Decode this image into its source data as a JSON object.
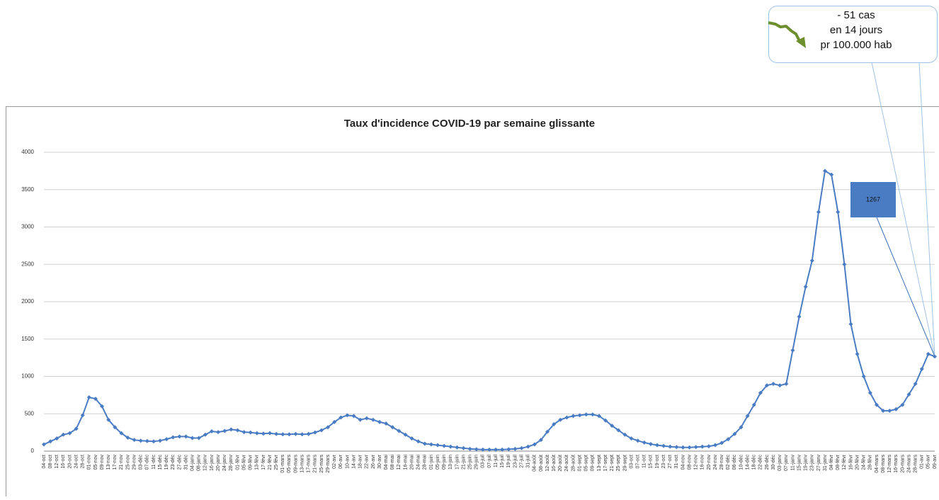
{
  "chart_data": {
    "type": "line",
    "title": "Taux d'incidence COVID-19 par semaine glissante",
    "categories": [
      "04-oct",
      "08-oct",
      "12-oct",
      "16-oct",
      "20-oct",
      "24-oct",
      "28-oct",
      "01-nov",
      "05-nov",
      "09-nov",
      "13-nov",
      "17-nov",
      "21-nov",
      "25-nov",
      "29-nov",
      "03-déc",
      "07-déc",
      "11-déc",
      "15-déc",
      "19-déc",
      "23-déc",
      "27-déc",
      "31-déc",
      "04-janv",
      "08-janv",
      "12-janv",
      "16-janv",
      "20-janv",
      "24-janv",
      "28-janv",
      "01-févr",
      "05-févr",
      "09-févr",
      "13-févr",
      "17-févr",
      "21-févr",
      "25-févr",
      "01-mars",
      "05-mars",
      "09-mars",
      "13-mars",
      "17-mars",
      "21-mars",
      "25-mars",
      "29-mars",
      "02-avr",
      "06-avr",
      "10-avr",
      "14-avr",
      "18-avr",
      "22-avr",
      "26-avr",
      "30-avr",
      "04-mai",
      "08-mai",
      "12-mai",
      "16-mai",
      "20-mai",
      "24-mai",
      "28-mai",
      "01-juin",
      "05-juin",
      "09-juin",
      "13-juin",
      "17-juin",
      "21-juin",
      "25-juin",
      "29-juin",
      "03-juil",
      "07-juil",
      "11-juil",
      "15-juil",
      "19-juil",
      "23-juil",
      "27-juil",
      "31-juil",
      "04-août",
      "08-août",
      "12-août",
      "16-août",
      "20-août",
      "24-août",
      "28-août",
      "01-sept",
      "05-sept",
      "09-sept",
      "13-sept",
      "17-sept",
      "21-sept",
      "25-sept",
      "29-sept",
      "03-oct",
      "07-oct",
      "11-oct",
      "15-oct",
      "19-oct",
      "23-oct",
      "27-oct",
      "31-oct",
      "04-nov",
      "08-nov",
      "12-nov",
      "16-nov",
      "20-nov",
      "24-nov",
      "28-nov",
      "02-déc",
      "06-déc",
      "10-déc",
      "14-déc",
      "18-déc",
      "22-déc",
      "26-déc",
      "30-déc",
      "03-janv",
      "07-janv",
      "11-janv",
      "15-janv",
      "19-janv",
      "23-janv",
      "27-janv",
      "31-janv",
      "04-févr",
      "08-févr",
      "12-févr",
      "16-févr",
      "20-févr",
      "24-févr",
      "28-févr",
      "04-mars",
      "08-mars",
      "12-mars",
      "16-mars",
      "20-mars",
      "24-mars",
      "28-mars",
      "01-avr",
      "05-avr",
      "09-avr"
    ],
    "values": [
      90,
      130,
      170,
      220,
      240,
      300,
      480,
      720,
      700,
      600,
      420,
      320,
      240,
      180,
      150,
      140,
      135,
      130,
      140,
      160,
      185,
      195,
      195,
      175,
      175,
      220,
      265,
      255,
      270,
      290,
      280,
      255,
      250,
      240,
      235,
      240,
      230,
      225,
      225,
      230,
      225,
      230,
      250,
      280,
      320,
      390,
      450,
      480,
      470,
      420,
      440,
      420,
      390,
      370,
      320,
      270,
      220,
      170,
      130,
      100,
      90,
      80,
      70,
      60,
      50,
      40,
      30,
      25,
      20,
      20,
      20,
      20,
      25,
      30,
      40,
      60,
      90,
      150,
      260,
      360,
      420,
      450,
      470,
      480,
      490,
      490,
      470,
      410,
      340,
      280,
      220,
      170,
      140,
      115,
      95,
      80,
      70,
      60,
      55,
      50,
      50,
      55,
      60,
      65,
      80,
      110,
      160,
      230,
      320,
      470,
      620,
      780,
      880,
      900,
      880,
      900,
      1350,
      1800,
      2200,
      2550,
      3200,
      3750,
      3700,
      3200,
      2500,
      1700,
      1300,
      1000,
      780,
      620,
      540,
      540,
      560,
      620,
      760,
      900,
      1100,
      1300,
      1267
    ],
    "color": "#4a7cc3",
    "ylim": [
      0,
      4000
    ],
    "yticks": [
      0,
      500,
      1000,
      1500,
      2000,
      2500,
      3000,
      3500,
      4000
    ],
    "grid": true,
    "value_box": 1267,
    "callout_lines": [
      "-   51 cas",
      "en 14  jours",
      "pr 100.000 hab"
    ]
  }
}
